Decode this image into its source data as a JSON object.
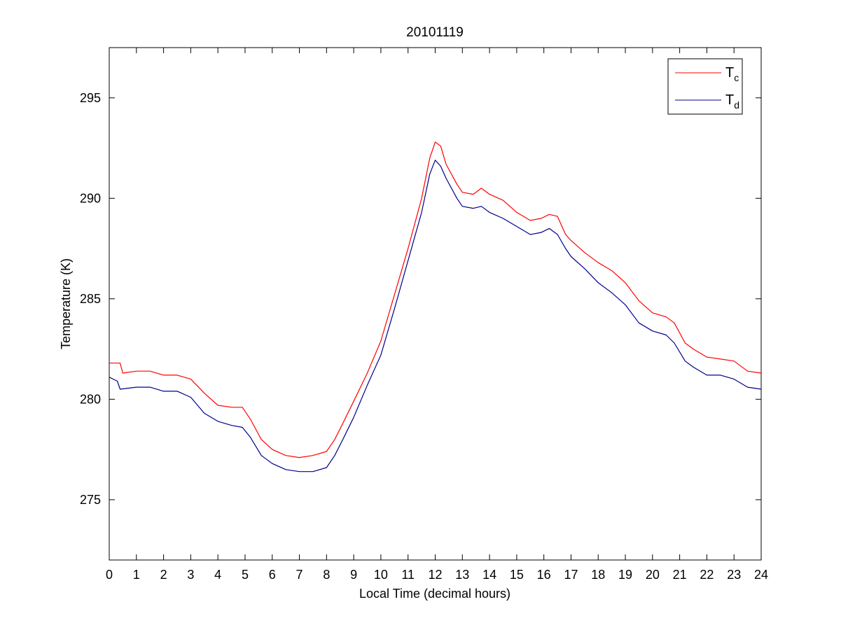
{
  "chart_data": {
    "type": "line",
    "title": "20101119",
    "xlabel": "Local Time (decimal hours)",
    "ylabel": "Temperature (K)",
    "xlim": [
      0,
      24
    ],
    "ylim": [
      272,
      297.5
    ],
    "x_ticks": [
      "0",
      "1",
      "2",
      "3",
      "4",
      "5",
      "6",
      "7",
      "8",
      "9",
      "10",
      "11",
      "12",
      "13",
      "14",
      "15",
      "16",
      "17",
      "18",
      "19",
      "20",
      "21",
      "22",
      "23",
      "24"
    ],
    "y_ticks": [
      "275",
      "280",
      "285",
      "290",
      "295"
    ],
    "grid": false,
    "legend_position": "top-right",
    "series": [
      {
        "name": "T",
        "subscript": "c",
        "color": "#ff0000",
        "points": [
          [
            0,
            281.8
          ],
          [
            0.4,
            281.8
          ],
          [
            0.5,
            281.3
          ],
          [
            1,
            281.4
          ],
          [
            1.5,
            281.4
          ],
          [
            2,
            281.2
          ],
          [
            2.5,
            281.2
          ],
          [
            3,
            281.0
          ],
          [
            3.5,
            280.3
          ],
          [
            4,
            279.7
          ],
          [
            4.5,
            279.6
          ],
          [
            4.9,
            279.6
          ],
          [
            5.2,
            279.0
          ],
          [
            5.6,
            278.0
          ],
          [
            6,
            277.5
          ],
          [
            6.5,
            277.2
          ],
          [
            7,
            277.1
          ],
          [
            7.5,
            277.2
          ],
          [
            8,
            277.4
          ],
          [
            8.3,
            278.0
          ],
          [
            8.6,
            278.8
          ],
          [
            9,
            279.9
          ],
          [
            9.5,
            281.3
          ],
          [
            10,
            282.9
          ],
          [
            10.5,
            285.2
          ],
          [
            11,
            287.5
          ],
          [
            11.5,
            290.0
          ],
          [
            11.8,
            292.0
          ],
          [
            12,
            292.8
          ],
          [
            12.2,
            292.6
          ],
          [
            12.4,
            291.7
          ],
          [
            12.8,
            290.7
          ],
          [
            13,
            290.3
          ],
          [
            13.4,
            290.2
          ],
          [
            13.7,
            290.5
          ],
          [
            14,
            290.2
          ],
          [
            14.5,
            289.9
          ],
          [
            15,
            289.3
          ],
          [
            15.5,
            288.9
          ],
          [
            15.9,
            289.0
          ],
          [
            16.2,
            289.2
          ],
          [
            16.5,
            289.1
          ],
          [
            16.8,
            288.2
          ],
          [
            17,
            287.9
          ],
          [
            17.5,
            287.3
          ],
          [
            18,
            286.8
          ],
          [
            18.5,
            286.4
          ],
          [
            19,
            285.8
          ],
          [
            19.5,
            284.9
          ],
          [
            20,
            284.3
          ],
          [
            20.5,
            284.1
          ],
          [
            20.8,
            283.8
          ],
          [
            21.2,
            282.8
          ],
          [
            21.5,
            282.5
          ],
          [
            22,
            282.1
          ],
          [
            22.5,
            282.0
          ],
          [
            23,
            281.9
          ],
          [
            23.5,
            281.4
          ],
          [
            24,
            281.3
          ]
        ]
      },
      {
        "name": "T",
        "subscript": "d",
        "color": "#00008b",
        "points": [
          [
            0,
            281.1
          ],
          [
            0.3,
            280.9
          ],
          [
            0.4,
            280.5
          ],
          [
            1,
            280.6
          ],
          [
            1.5,
            280.6
          ],
          [
            2,
            280.4
          ],
          [
            2.5,
            280.4
          ],
          [
            3,
            280.1
          ],
          [
            3.5,
            279.3
          ],
          [
            4,
            278.9
          ],
          [
            4.5,
            278.7
          ],
          [
            4.9,
            278.6
          ],
          [
            5.2,
            278.1
          ],
          [
            5.6,
            277.2
          ],
          [
            6,
            276.8
          ],
          [
            6.5,
            276.5
          ],
          [
            7,
            276.4
          ],
          [
            7.5,
            276.4
          ],
          [
            8,
            276.6
          ],
          [
            8.3,
            277.2
          ],
          [
            8.6,
            278.0
          ],
          [
            9,
            279.1
          ],
          [
            9.5,
            280.7
          ],
          [
            10,
            282.2
          ],
          [
            10.5,
            284.5
          ],
          [
            11,
            286.9
          ],
          [
            11.5,
            289.3
          ],
          [
            11.8,
            291.2
          ],
          [
            12,
            291.9
          ],
          [
            12.2,
            291.6
          ],
          [
            12.4,
            291.0
          ],
          [
            12.8,
            290.0
          ],
          [
            13,
            289.6
          ],
          [
            13.4,
            289.5
          ],
          [
            13.7,
            289.6
          ],
          [
            14,
            289.3
          ],
          [
            14.5,
            289.0
          ],
          [
            15,
            288.6
          ],
          [
            15.5,
            288.2
          ],
          [
            15.9,
            288.3
          ],
          [
            16.2,
            288.5
          ],
          [
            16.5,
            288.2
          ],
          [
            16.8,
            287.5
          ],
          [
            17,
            287.1
          ],
          [
            17.5,
            286.5
          ],
          [
            18,
            285.8
          ],
          [
            18.5,
            285.3
          ],
          [
            19,
            284.7
          ],
          [
            19.5,
            283.8
          ],
          [
            20,
            283.4
          ],
          [
            20.5,
            283.2
          ],
          [
            20.8,
            282.8
          ],
          [
            21.2,
            281.9
          ],
          [
            21.5,
            281.6
          ],
          [
            22,
            281.2
          ],
          [
            22.5,
            281.2
          ],
          [
            23,
            281.0
          ],
          [
            23.5,
            280.6
          ],
          [
            24,
            280.5
          ]
        ]
      }
    ]
  }
}
